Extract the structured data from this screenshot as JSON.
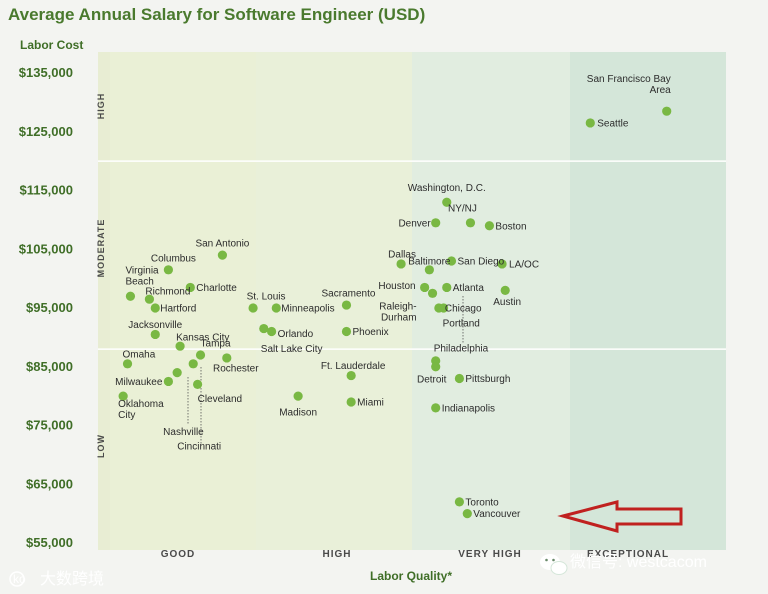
{
  "chart_data": {
    "type": "scatter",
    "title": "Average Annual Salary for Software Engineer (USD)",
    "ylabel": "Labor Cost",
    "xlabel": "Labor Quality*",
    "ylim": [
      55000,
      138000
    ],
    "y_ticks": [
      "$135,000",
      "$125,000",
      "$115,000",
      "$105,000",
      "$95,000",
      "$85,000",
      "$75,000",
      "$65,000",
      "$55,000"
    ],
    "y_tick_values": [
      135000,
      125000,
      115000,
      105000,
      95000,
      85000,
      75000,
      65000,
      55000
    ],
    "quality_categories": [
      "GOOD",
      "HIGH",
      "VERY HIGH",
      "EXCEPTIONAL"
    ],
    "cost_bands": [
      "HIGH",
      "MODERATE",
      "LOW"
    ],
    "cost_band_bounds": [
      120000,
      88000
    ],
    "colors": {
      "good": "#eaf0d6",
      "high": "#e9f0d9",
      "very_high": "#e1ede0",
      "exceptional": "#d4e6d9",
      "point": "#79b843",
      "arrow": "#c0211f"
    },
    "points": [
      {
        "name": "San Francisco Bay Area",
        "label_lines": [
          "San Francisco Bay",
          "Area"
        ],
        "quality": 3.62,
        "salary": 128500
      },
      {
        "name": "Seattle",
        "label_lines": [
          "Seattle"
        ],
        "quality": 3.13,
        "salary": 126500
      },
      {
        "name": "Washington, D.C.",
        "label_lines": [
          "Washington, D.C."
        ],
        "quality": 2.22,
        "salary": 113000
      },
      {
        "name": "Denver",
        "label_lines": [
          "Denver"
        ],
        "quality": 2.15,
        "salary": 109500
      },
      {
        "name": "NY/NJ",
        "label_lines": [
          "NY/NJ"
        ],
        "quality": 2.37,
        "salary": 109500
      },
      {
        "name": "Boston",
        "label_lines": [
          "Boston"
        ],
        "quality": 2.49,
        "salary": 109000
      },
      {
        "name": "San Antonio",
        "label_lines": [
          "San Antonio"
        ],
        "quality": 0.77,
        "salary": 104000
      },
      {
        "name": "Columbus",
        "label_lines": [
          "Columbus"
        ],
        "quality": 0.4,
        "salary": 101500
      },
      {
        "name": "Dallas",
        "label_lines": [
          "Dallas"
        ],
        "quality": 1.93,
        "salary": 102500
      },
      {
        "name": "Baltimore",
        "label_lines": [
          "Baltimore"
        ],
        "quality": 2.11,
        "salary": 101500
      },
      {
        "name": "San Diego",
        "label_lines": [
          "San Diego"
        ],
        "quality": 2.25,
        "salary": 103000
      },
      {
        "name": "LA/OC",
        "label_lines": [
          "LA/OC"
        ],
        "quality": 2.57,
        "salary": 102500
      },
      {
        "name": "Virginia Beach",
        "label_lines": [
          "Virginia",
          "Beach"
        ],
        "quality": 0.14,
        "salary": 97000
      },
      {
        "name": "Richmond",
        "label_lines": [
          "Richmond"
        ],
        "quality": 0.27,
        "salary": 96500
      },
      {
        "name": "Hartford",
        "label_lines": [
          "Hartford"
        ],
        "quality": 0.31,
        "salary": 95000
      },
      {
        "name": "Charlotte",
        "label_lines": [
          "Charlotte"
        ],
        "quality": 0.55,
        "salary": 98500
      },
      {
        "name": "Jacksonville",
        "label_lines": [
          "Jacksonville"
        ],
        "quality": 0.31,
        "salary": 90500
      },
      {
        "name": "St. Louis",
        "label_lines": [
          "St. Louis"
        ],
        "quality": 0.98,
        "salary": 95000
      },
      {
        "name": "Minneapolis",
        "label_lines": [
          "Minneapolis"
        ],
        "quality": 1.13,
        "salary": 95000
      },
      {
        "name": "Sacramento",
        "label_lines": [
          "Sacramento"
        ],
        "quality": 1.58,
        "salary": 95500
      },
      {
        "name": "Orlando",
        "label_lines": [
          "Orlando"
        ],
        "quality": 1.1,
        "salary": 91000
      },
      {
        "name": "Salt Lake City",
        "label_lines": [
          "Salt Lake City"
        ],
        "quality": 1.05,
        "salary": 91500
      },
      {
        "name": "Phoenix",
        "label_lines": [
          "Phoenix"
        ],
        "quality": 1.58,
        "salary": 91000
      },
      {
        "name": "Houston",
        "label_lines": [
          "Houston"
        ],
        "quality": 2.08,
        "salary": 98500
      },
      {
        "name": "Atlanta",
        "label_lines": [
          "Atlanta"
        ],
        "quality": 2.22,
        "salary": 98500
      },
      {
        "name": "Austin",
        "label_lines": [
          "Austin"
        ],
        "quality": 2.59,
        "salary": 98000
      },
      {
        "name": "Raleigh-Durham",
        "label_lines": [
          "Raleigh-",
          "Durham"
        ],
        "quality": 2.13,
        "salary": 97500
      },
      {
        "name": "Portland",
        "label_lines": [
          "Portland"
        ],
        "quality": 2.2,
        "salary": 95000
      },
      {
        "name": "Chicago",
        "label_lines": [
          "Chicago"
        ],
        "quality": 2.17,
        "salary": 95000
      },
      {
        "name": "Kansas City",
        "label_lines": [
          "Kansas City"
        ],
        "quality": 0.48,
        "salary": 88500
      },
      {
        "name": "Tampa",
        "label_lines": [
          "Tampa"
        ],
        "quality": 0.62,
        "salary": 87000
      },
      {
        "name": "Omaha",
        "label_lines": [
          "Omaha"
        ],
        "quality": 0.12,
        "salary": 85500
      },
      {
        "name": "Rochester",
        "label_lines": [
          "Rochester"
        ],
        "quality": 0.8,
        "salary": 86500
      },
      {
        "name": "Milwaukee",
        "label_lines": [
          "Milwaukee"
        ],
        "quality": 0.4,
        "salary": 82500
      },
      {
        "name": "Nashville",
        "label_lines": [
          "Nashville"
        ],
        "quality": 0.46,
        "salary": 84000
      },
      {
        "name": "Cincinnati",
        "label_lines": [
          "Cincinnati"
        ],
        "quality": 0.57,
        "salary": 85500
      },
      {
        "name": "Cleveland",
        "label_lines": [
          "Cleveland"
        ],
        "quality": 0.6,
        "salary": 82000
      },
      {
        "name": "Oklahoma City",
        "label_lines": [
          "Oklahoma",
          "City"
        ],
        "quality": 0.09,
        "salary": 80000
      },
      {
        "name": "Madison",
        "label_lines": [
          "Madison"
        ],
        "quality": 1.27,
        "salary": 80000
      },
      {
        "name": "Ft. Lauderdale",
        "label_lines": [
          "Ft. Lauderdale"
        ],
        "quality": 1.61,
        "salary": 83500
      },
      {
        "name": "Miami",
        "label_lines": [
          "Miami"
        ],
        "quality": 1.61,
        "salary": 79000
      },
      {
        "name": "Philadelphia",
        "label_lines": [
          "Philadelphia"
        ],
        "quality": 2.15,
        "salary": 86000
      },
      {
        "name": "Detroit",
        "label_lines": [
          "Detroit"
        ],
        "quality": 2.15,
        "salary": 85000
      },
      {
        "name": "Pittsburgh",
        "label_lines": [
          "Pittsburgh"
        ],
        "quality": 2.3,
        "salary": 83000
      },
      {
        "name": "Indianapolis",
        "label_lines": [
          "Indianapolis"
        ],
        "quality": 2.15,
        "salary": 78000
      },
      {
        "name": "Toronto",
        "label_lines": [
          "Toronto"
        ],
        "quality": 2.3,
        "salary": 62000
      },
      {
        "name": "Vancouver",
        "label_lines": [
          "Vancouver"
        ],
        "quality": 2.35,
        "salary": 60000
      }
    ]
  },
  "watermarks": {
    "left_text": "大数跨境",
    "left_logo": "ko",
    "right_text": "微信号: westcacom"
  }
}
